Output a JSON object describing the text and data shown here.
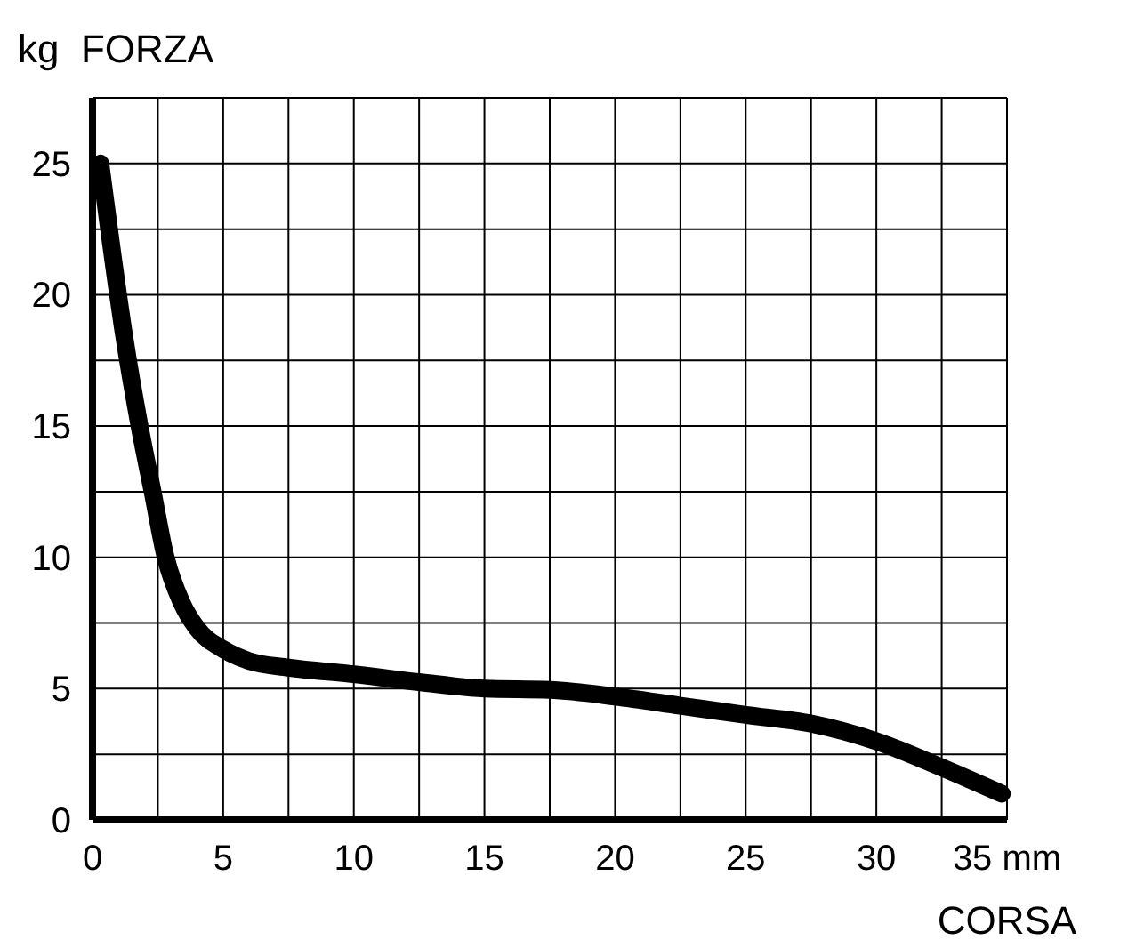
{
  "chart_data": {
    "type": "line",
    "ylabel": "kg  FORZA",
    "xlabel": "CORSA",
    "xlim": [
      0,
      35
    ],
    "ylim": [
      0,
      27.5
    ],
    "xticks": [
      0,
      {
        "value": 2.5,
        "label": null
      },
      5,
      {
        "value": 7.5,
        "label": null
      },
      10,
      {
        "value": 12.5,
        "label": null
      },
      15,
      {
        "value": 17.5,
        "label": null
      },
      20,
      {
        "value": 22.5,
        "label": null
      },
      25,
      {
        "value": 27.5,
        "label": null
      },
      30,
      {
        "value": 32.5,
        "label": null
      },
      {
        "value": 35,
        "label": "35 mm"
      }
    ],
    "yticks": [
      0,
      {
        "value": 2.5,
        "label": null
      },
      5,
      {
        "value": 7.5,
        "label": null
      },
      10,
      {
        "value": 12.5,
        "label": null
      },
      15,
      {
        "value": 17.5,
        "label": null
      },
      20,
      {
        "value": 22.5,
        "label": null
      },
      25,
      {
        "value": 27.5,
        "label": null
      }
    ],
    "grid": true,
    "marker": "none",
    "line_style": "solid",
    "series": [
      {
        "color": "#000000",
        "x": [
          0.3,
          0.7,
          1.2,
          1.8,
          2.3,
          2.8,
          3.4,
          4,
          5,
          6,
          7.5,
          10,
          12.5,
          15,
          17.5,
          20,
          22.5,
          25,
          27.5,
          30,
          32.5,
          34.8
        ],
        "values": [
          25,
          22,
          18.5,
          15,
          12.5,
          10,
          8.3,
          7.3,
          6.5,
          6.05,
          5.8,
          5.55,
          5.25,
          5.0,
          4.95,
          4.7,
          4.35,
          4.0,
          3.67,
          3.0,
          2.0,
          1.0
        ]
      }
    ]
  }
}
